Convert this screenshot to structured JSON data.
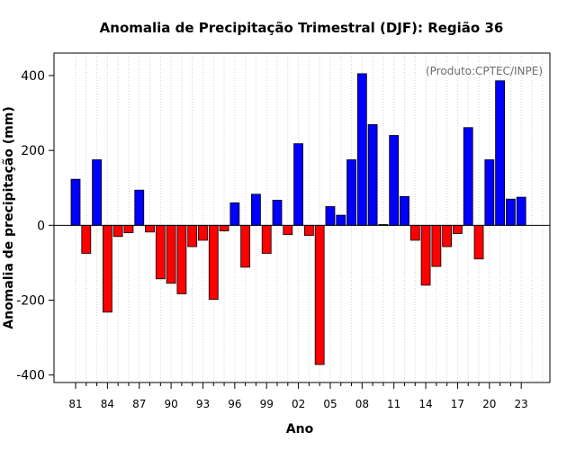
{
  "chart_data": {
    "type": "bar",
    "title": "Anomalia de Precipitação Trimestral (DJF): Região 36",
    "xlabel": "Ano",
    "ylabel": "Anomalia de precipitação (mm)",
    "annotation": "(Produto:CPTEC/INPE)",
    "ylim": [
      -420,
      460
    ],
    "yticks": [
      -400,
      -200,
      0,
      200,
      400
    ],
    "grid": "vertical dotted",
    "categories": [
      "81",
      "82",
      "83",
      "84",
      "85",
      "86",
      "87",
      "88",
      "89",
      "90",
      "91",
      "92",
      "93",
      "94",
      "95",
      "96",
      "97",
      "98",
      "99",
      "00",
      "01",
      "02",
      "03",
      "04",
      "05",
      "06",
      "07",
      "08",
      "09",
      "10",
      "11",
      "12",
      "13",
      "14",
      "15",
      "16",
      "17",
      "18",
      "19",
      "20",
      "21",
      "22",
      "23"
    ],
    "xtick_labels": [
      "81",
      "84",
      "87",
      "90",
      "93",
      "96",
      "99",
      "02",
      "05",
      "08",
      "11",
      "14",
      "17",
      "20",
      "23"
    ],
    "values": [
      123,
      -75,
      175,
      -232,
      -30,
      -20,
      94,
      -18,
      -143,
      -155,
      -183,
      -57,
      -40,
      -198,
      -15,
      60,
      -112,
      83,
      -75,
      67,
      -25,
      218,
      -27,
      -372,
      50,
      27,
      175,
      405,
      269,
      2,
      240,
      77,
      -40,
      -160,
      -110,
      -57,
      -22,
      261,
      -90,
      175,
      386,
      70,
      75
    ],
    "colors": {
      "positive": "#0000ff",
      "negative": "#ff0000",
      "edge": "#000000",
      "grid": "#d3d3d3"
    }
  }
}
